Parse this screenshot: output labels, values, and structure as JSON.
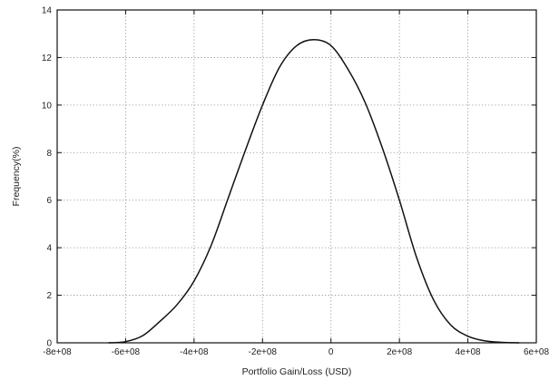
{
  "chart_data": {
    "type": "line",
    "xlabel": "Portfolio Gain/Loss (USD)",
    "ylabel": "Frequency(%)",
    "xlim": [
      -800000000,
      600000000
    ],
    "ylim": [
      0,
      14
    ],
    "x_ticks": [
      -800000000,
      -600000000,
      -400000000,
      -200000000,
      0,
      200000000,
      400000000,
      600000000
    ],
    "x_tick_labels": [
      "-8e+08",
      "-6e+08",
      "-4e+08",
      "-2e+08",
      "0",
      "2e+08",
      "4e+08",
      "6e+08"
    ],
    "y_ticks": [
      0,
      2,
      4,
      6,
      8,
      10,
      12,
      14
    ],
    "y_tick_labels": [
      "0",
      "2",
      "4",
      "6",
      "8",
      "10",
      "12",
      "14"
    ],
    "grid": true,
    "series": [
      {
        "x": [
          -650000000,
          -600000000,
          -550000000,
          -500000000,
          -450000000,
          -400000000,
          -350000000,
          -300000000,
          -250000000,
          -200000000,
          -150000000,
          -100000000,
          -50000000,
          0,
          50000000,
          100000000,
          150000000,
          200000000,
          250000000,
          300000000,
          350000000,
          400000000,
          450000000,
          500000000,
          550000000
        ],
        "y": [
          0,
          0.05,
          0.3,
          0.9,
          1.6,
          2.6,
          4.1,
          6.1,
          8.1,
          10.0,
          11.6,
          12.5,
          12.75,
          12.5,
          11.5,
          10.1,
          8.2,
          6.0,
          3.6,
          1.8,
          0.75,
          0.28,
          0.08,
          0.02,
          0
        ]
      }
    ]
  }
}
